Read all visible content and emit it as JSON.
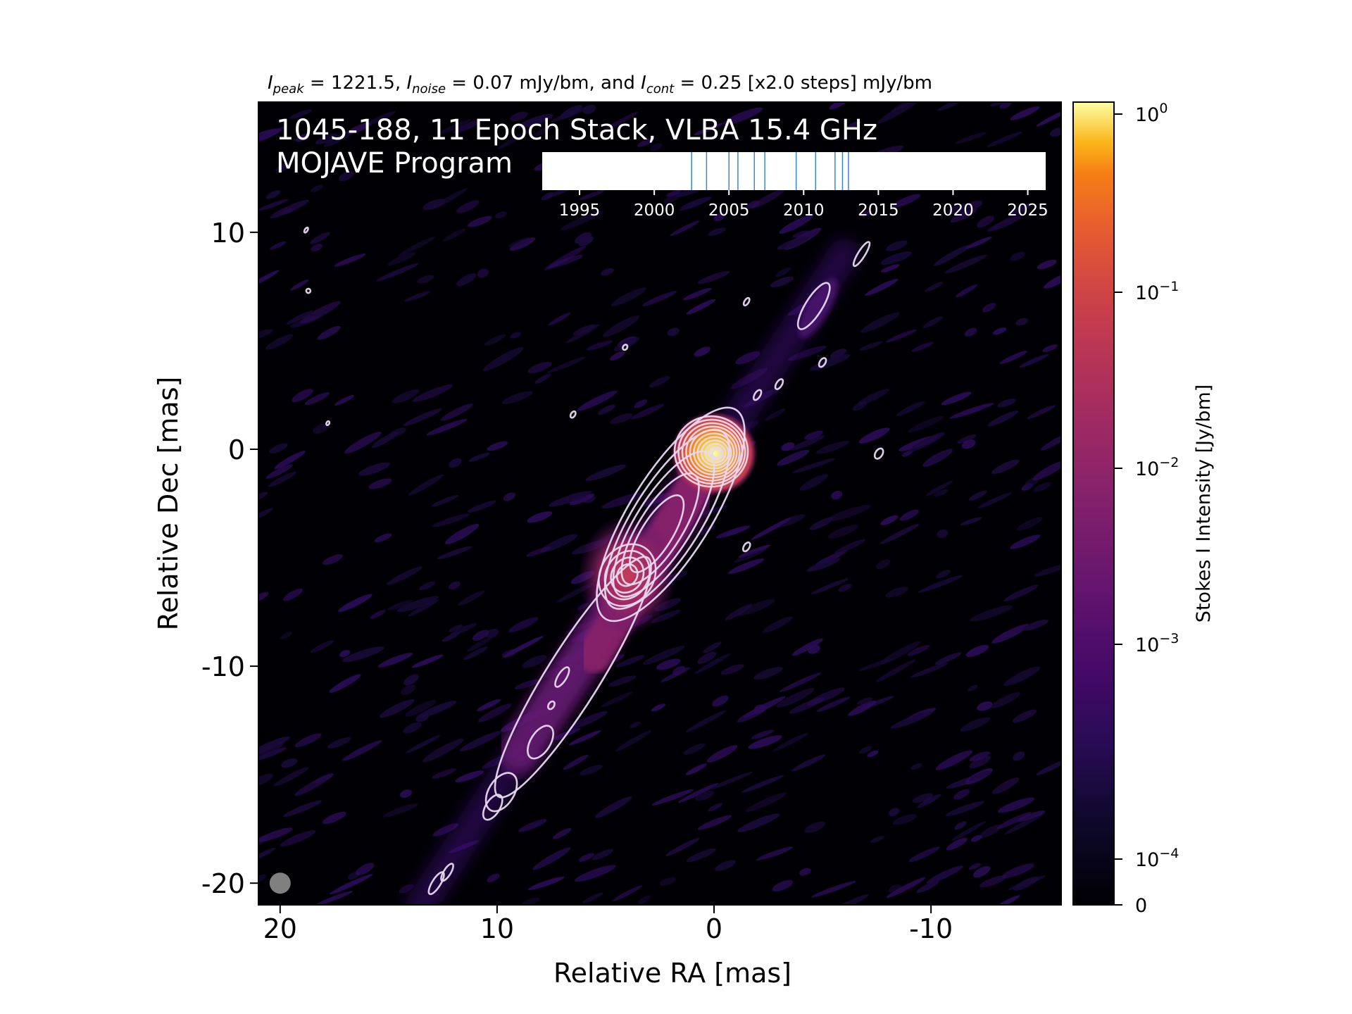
{
  "chart_data": {
    "type": "heatmap",
    "header": {
      "ipeak_sym": "I",
      "ipeak_sub": "peak",
      "ipeak_val": " = 1221.5, ",
      "inoise_sym": "I",
      "inoise_sub": "noise",
      "inoise_val": " = 0.07 mJy/bm, and ",
      "icont_sym": "I",
      "icont_sub": "cont",
      "icont_val": " = 0.25 [x2.0 steps] mJy/bm"
    },
    "overlay_title_1": "1045-188, 11 Epoch Stack, VLBA 15.4 GHz",
    "overlay_title_2": "MOJAVE Program",
    "xlabel": "Relative RA [mas]",
    "ylabel": "Relative Dec [mas]",
    "colorbar_label": "Stokes I Intensity [Jy/bm]",
    "x_range": [
      21,
      -16
    ],
    "y_range": [
      -21,
      16
    ],
    "x_ticks": [
      20,
      10,
      0,
      -10
    ],
    "x_tick_labels": [
      "20",
      "10",
      "0",
      "-10"
    ],
    "y_ticks": [
      10,
      0,
      -10,
      -20
    ],
    "y_tick_labels": [
      "10",
      "0",
      "-10",
      "-20"
    ],
    "colorbar": {
      "scale": "log",
      "colormap": "inferno",
      "ticks": [
        {
          "base": "10",
          "exp": "0"
        },
        {
          "base": "10",
          "exp": "−1"
        },
        {
          "base": "10",
          "exp": "−2"
        },
        {
          "base": "10",
          "exp": "−3"
        },
        {
          "base": "10",
          "exp": "−4"
        },
        {
          "base": "0",
          "exp": ""
        }
      ]
    },
    "epoch_timeline": {
      "range": [
        1992.5,
        2026.2
      ],
      "tick_labels": [
        "1995",
        "2000",
        "2005",
        "2010",
        "2015",
        "2020",
        "2025"
      ],
      "tick_years": [
        1995,
        2000,
        2005,
        2010,
        2015,
        2020,
        2025
      ],
      "epochs": [
        2002.5,
        2003.5,
        2005.0,
        2005.6,
        2006.7,
        2007.4,
        2009.5,
        2010.8,
        2012.1,
        2012.6,
        2013.0
      ]
    },
    "features": {
      "core": {
        "ra": 0.0,
        "dec": -0.2,
        "peak_jy": 1.22
      },
      "knot": {
        "ra": 4.0,
        "dec": -5.8
      }
    },
    "beam": {
      "ra": 20.0,
      "dec": -20.0,
      "color": "#808080"
    },
    "contour_color": "#e8d8f0",
    "background_color": "#000004"
  }
}
